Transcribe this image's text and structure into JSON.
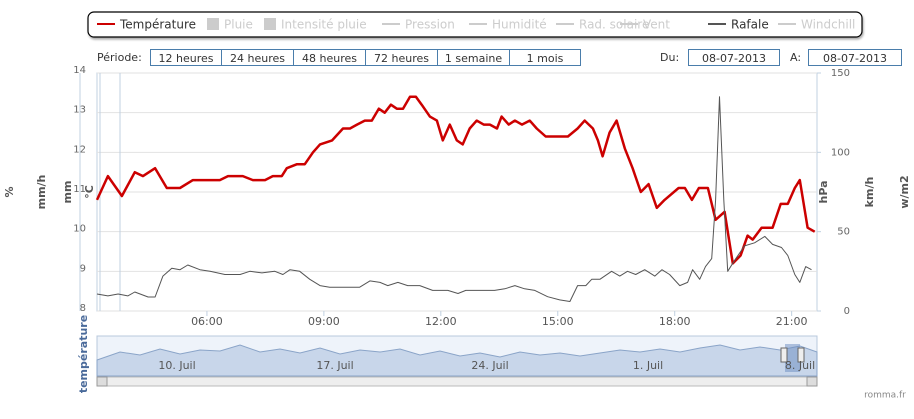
{
  "chart_data": {
    "type": "line",
    "series": [
      {
        "name": "Température",
        "color": "#cc0000",
        "symbol": "line",
        "visible": true,
        "axis": "y",
        "x": [
          3.18,
          3.46,
          3.82,
          4.15,
          4.36,
          4.67,
          4.97,
          5.31,
          5.64,
          6.33,
          6.54,
          6.92,
          7.18,
          7.49,
          7.69,
          7.92,
          8.05,
          8.31,
          8.51,
          8.72,
          8.9,
          9.21,
          9.49,
          9.67,
          9.85,
          10.05,
          10.23,
          10.41,
          10.56,
          10.72,
          10.87,
          11.03,
          11.21,
          11.36,
          11.51,
          11.72,
          11.9,
          12.05,
          12.23,
          12.41,
          12.56,
          12.74,
          12.92,
          13.1,
          13.26,
          13.44,
          13.56,
          13.74,
          13.9,
          14.08,
          14.28,
          14.46,
          14.69,
          15.26,
          15.51,
          15.69,
          15.9,
          16.03,
          16.15,
          16.33,
          16.51,
          16.72,
          16.92,
          17.13,
          17.33,
          17.54,
          17.74,
          18.1,
          18.26,
          18.44,
          18.62,
          18.85,
          19.05,
          19.28,
          19.49,
          19.69,
          19.87,
          20.0,
          20.23,
          20.51,
          20.72,
          20.9,
          21.08,
          21.21,
          21.41,
          21.59
        ],
        "values": [
          10.8,
          11.4,
          10.9,
          11.5,
          11.4,
          11.6,
          11.1,
          11.1,
          11.3,
          11.3,
          11.4,
          11.4,
          11.3,
          11.3,
          11.4,
          11.4,
          11.6,
          11.7,
          11.7,
          12.0,
          12.2,
          12.3,
          12.6,
          12.6,
          12.7,
          12.8,
          12.8,
          13.1,
          13.0,
          13.2,
          13.1,
          13.1,
          13.4,
          13.4,
          13.2,
          12.9,
          12.8,
          12.3,
          12.7,
          12.3,
          12.2,
          12.6,
          12.8,
          12.7,
          12.7,
          12.6,
          12.9,
          12.7,
          12.8,
          12.7,
          12.8,
          12.6,
          12.4,
          12.4,
          12.6,
          12.8,
          12.6,
          12.3,
          11.9,
          12.5,
          12.8,
          12.1,
          11.6,
          11.0,
          11.2,
          10.6,
          10.8,
          11.1,
          11.1,
          10.8,
          11.1,
          11.1,
          10.3,
          10.5,
          9.2,
          9.4,
          9.9,
          9.8,
          10.1,
          10.1,
          10.7,
          10.7,
          11.1,
          11.3,
          10.1,
          10.0
        ]
      },
      {
        "name": "Pluie",
        "color": "#cccccc",
        "symbol": "square",
        "visible": false
      },
      {
        "name": "Intensité pluie",
        "color": "#cccccc",
        "symbol": "square",
        "visible": false
      },
      {
        "name": "Pression",
        "color": "#cccccc",
        "symbol": "line",
        "visible": false
      },
      {
        "name": "Humidité",
        "color": "#cccccc",
        "symbol": "line",
        "visible": false
      },
      {
        "name": "Rad. solaire",
        "color": "#cccccc",
        "symbol": "line",
        "visible": false
      },
      {
        "name": "Vent",
        "color": "#cccccc",
        "symbol": "line",
        "visible": false
      },
      {
        "name": "Rafale",
        "color": "#555555",
        "symbol": "line",
        "visible": true,
        "axis": "y2",
        "x": [
          3.18,
          3.46,
          3.72,
          3.97,
          4.15,
          4.49,
          4.67,
          4.87,
          5.1,
          5.31,
          5.51,
          5.82,
          6.08,
          6.46,
          6.85,
          7.1,
          7.41,
          7.74,
          7.95,
          8.13,
          8.38,
          8.64,
          8.9,
          9.15,
          9.54,
          9.92,
          10.18,
          10.44,
          10.64,
          10.9,
          11.15,
          11.46,
          11.79,
          12.18,
          12.44,
          12.64,
          13.0,
          13.38,
          13.64,
          13.9,
          14.15,
          14.41,
          14.74,
          15.05,
          15.31,
          15.51,
          15.72,
          15.87,
          16.08,
          16.38,
          16.59,
          16.79,
          17.0,
          17.23,
          17.49,
          17.67,
          17.87,
          18.13,
          18.33,
          18.46,
          18.64,
          18.79,
          18.95,
          19.05,
          19.15,
          19.26,
          19.36,
          19.54,
          19.79,
          20.05,
          20.31,
          20.51,
          20.74,
          20.9,
          21.08,
          21.21,
          21.36,
          21.51
        ],
        "values": [
          10.7,
          9.5,
          10.7,
          9.5,
          12,
          8.8,
          8.8,
          22,
          27,
          26,
          29,
          26,
          25,
          23,
          23,
          25,
          24,
          25,
          23,
          26,
          25,
          20,
          16,
          15,
          15,
          15,
          19,
          18,
          16,
          18,
          16,
          16,
          13,
          13,
          11,
          13,
          13,
          13,
          14,
          16,
          14,
          13,
          9,
          7,
          6,
          16,
          16,
          20,
          20,
          25,
          22,
          25,
          23,
          26,
          22,
          26,
          23,
          16,
          18,
          26,
          20,
          28,
          33,
          70,
          135,
          70,
          25,
          32,
          41,
          43,
          47,
          42,
          40,
          35,
          23,
          18,
          28,
          26
        ]
      },
      {
        "name": "Windchill",
        "color": "#cccccc",
        "symbol": "line",
        "visible": false
      }
    ],
    "xlim": [
      3.18,
      21.65
    ],
    "xticks": [
      {
        "value": 6,
        "label": "06:00"
      },
      {
        "value": 9,
        "label": "09:00"
      },
      {
        "value": 12,
        "label": "12:00"
      },
      {
        "value": 15,
        "label": "15:00"
      },
      {
        "value": 18,
        "label": "18:00"
      },
      {
        "value": 21,
        "label": "21:00"
      }
    ],
    "ylim": [
      8,
      14
    ],
    "yticks": [
      8,
      9,
      10,
      11,
      12,
      13,
      14
    ],
    "ylabel": "°C",
    "y2lim": [
      0,
      150
    ],
    "y2ticks": [
      0,
      50,
      100,
      150
    ],
    "y2label": "km/h",
    "left_axis_labels": [
      "%",
      "mm/h",
      "mm"
    ],
    "right_axis_labels": [
      "hPa",
      "w/m2"
    ],
    "grid": true,
    "navigator": {
      "label": "température",
      "dates": [
        "10. Juil",
        "17. Juil",
        "24. Juil",
        "1. Juil",
        "8. Juil"
      ]
    }
  },
  "controls": {
    "period_label": "Période:",
    "periods": [
      "12 heures",
      "24 heures",
      "48 heures",
      "72 heures",
      "1 semaine",
      "1 mois"
    ],
    "from_label": "Du:",
    "from_date": "08-07-2013",
    "to_label": "A:",
    "to_date": "08-07-2013"
  },
  "credit": "romma.fr"
}
